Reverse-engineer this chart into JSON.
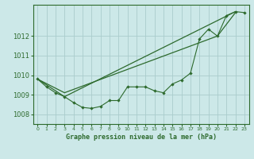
{
  "title": "Graphe pression niveau de la mer (hPa)",
  "background_color": "#cce8e8",
  "grid_color": "#aacccc",
  "line_color": "#2d6a2d",
  "xlim": [
    -0.5,
    23.5
  ],
  "ylim": [
    1007.5,
    1013.6
  ],
  "yticks": [
    1008,
    1009,
    1010,
    1011,
    1012
  ],
  "xticks": [
    0,
    1,
    2,
    3,
    4,
    5,
    6,
    7,
    8,
    9,
    10,
    11,
    12,
    13,
    14,
    15,
    16,
    17,
    18,
    19,
    20,
    21,
    22,
    23
  ],
  "series1": [
    1009.8,
    1009.4,
    1009.1,
    1008.9,
    1008.6,
    1008.35,
    1008.3,
    1008.4,
    1008.7,
    1008.7,
    1009.4,
    1009.4,
    1009.4,
    1009.2,
    1009.1,
    1009.55,
    1009.75,
    1010.1,
    1011.85,
    1012.35,
    1012.0,
    1013.05,
    1013.25,
    1013.2
  ],
  "series2_x": [
    0,
    3,
    22
  ],
  "series2_y": [
    1009.8,
    1008.9,
    1013.25
  ],
  "series3_x": [
    0,
    3,
    20,
    22
  ],
  "series3_y": [
    1009.8,
    1009.1,
    1012.0,
    1013.2
  ]
}
